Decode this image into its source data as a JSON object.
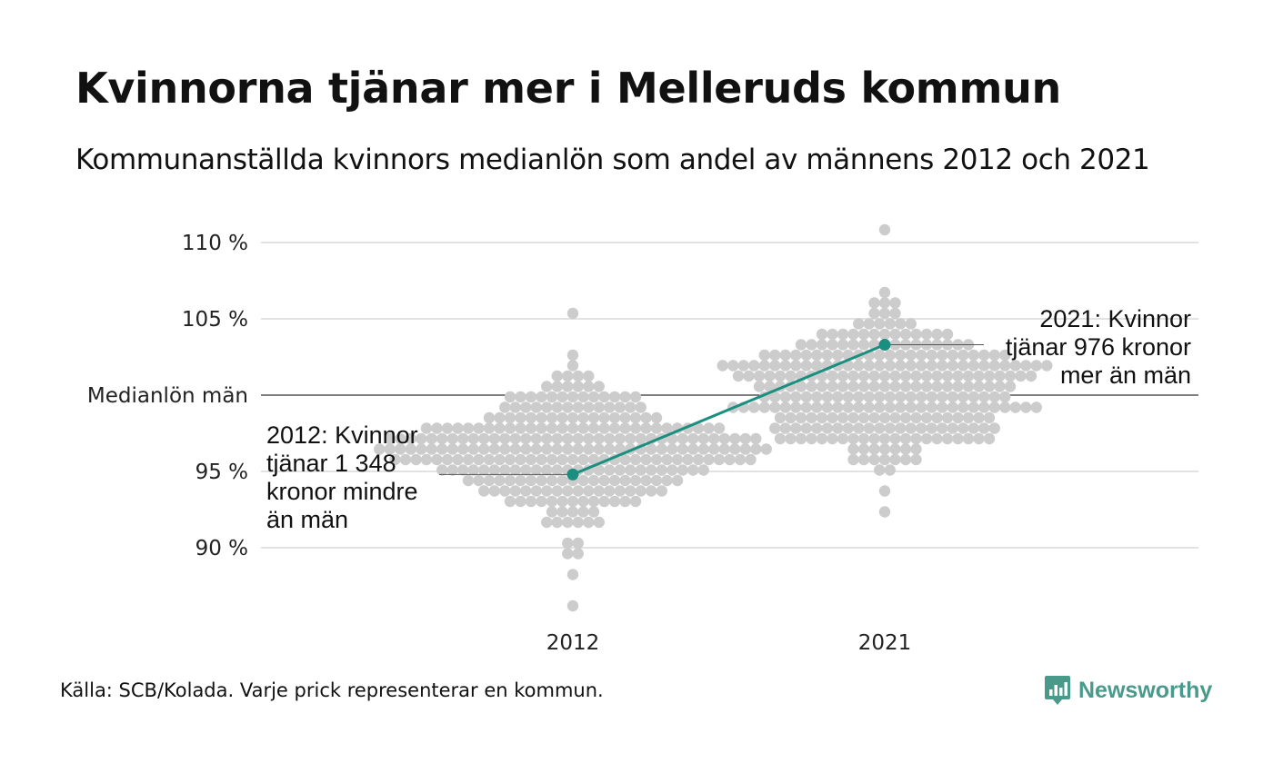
{
  "title": "Kvinnorna tjänar mer i Melleruds kommun",
  "subtitle": "Kommunanställda kvinnors medianlön som andel av männens 2012 och 2021",
  "source": "Källa: SCB/Kolada. Varje prick representerar en kommun.",
  "logo": {
    "text": "Newsworthy",
    "icon": "bar-chart-icon",
    "color": "#4a9a8c"
  },
  "colors": {
    "dots": "#cccccc",
    "highlight": "#1a8f80",
    "grid": "#e2e2e2",
    "reference": "#333333"
  },
  "chart_data": {
    "type": "scatter",
    "subtype": "beeswarm",
    "categories": [
      "2012",
      "2021"
    ],
    "ylim": [
      86,
      111.5
    ],
    "y_ticks": [
      {
        "value": 110,
        "label": "110 %"
      },
      {
        "value": 105,
        "label": "105 %"
      },
      {
        "value": 100,
        "label": "Medianlön män"
      },
      {
        "value": 95,
        "label": "95 %"
      },
      {
        "value": 90,
        "label": "90 %"
      }
    ],
    "reference_line": {
      "value": 100
    },
    "grid": true,
    "distributions": [
      {
        "category": "2012",
        "count": 290,
        "center": 96.4,
        "spread": 2.3,
        "min": 86.5,
        "max": 105.2,
        "highlight": {
          "value": 94.8,
          "annotation": [
            "2012: Kvinnor",
            "tjänar 1 348",
            "kronor mindre",
            "än män"
          ]
        }
      },
      {
        "category": "2021",
        "count": 290,
        "center": 100.4,
        "spread": 2.3,
        "min": 92.6,
        "max": 111.1,
        "highlight": {
          "value": 103.3,
          "annotation": [
            "2021: Kvinnor",
            "tjänar 976 kronor",
            "mer än män"
          ]
        }
      }
    ],
    "highlight_series": {
      "name": "Mellerud",
      "values": [
        94.8,
        103.3
      ]
    }
  }
}
